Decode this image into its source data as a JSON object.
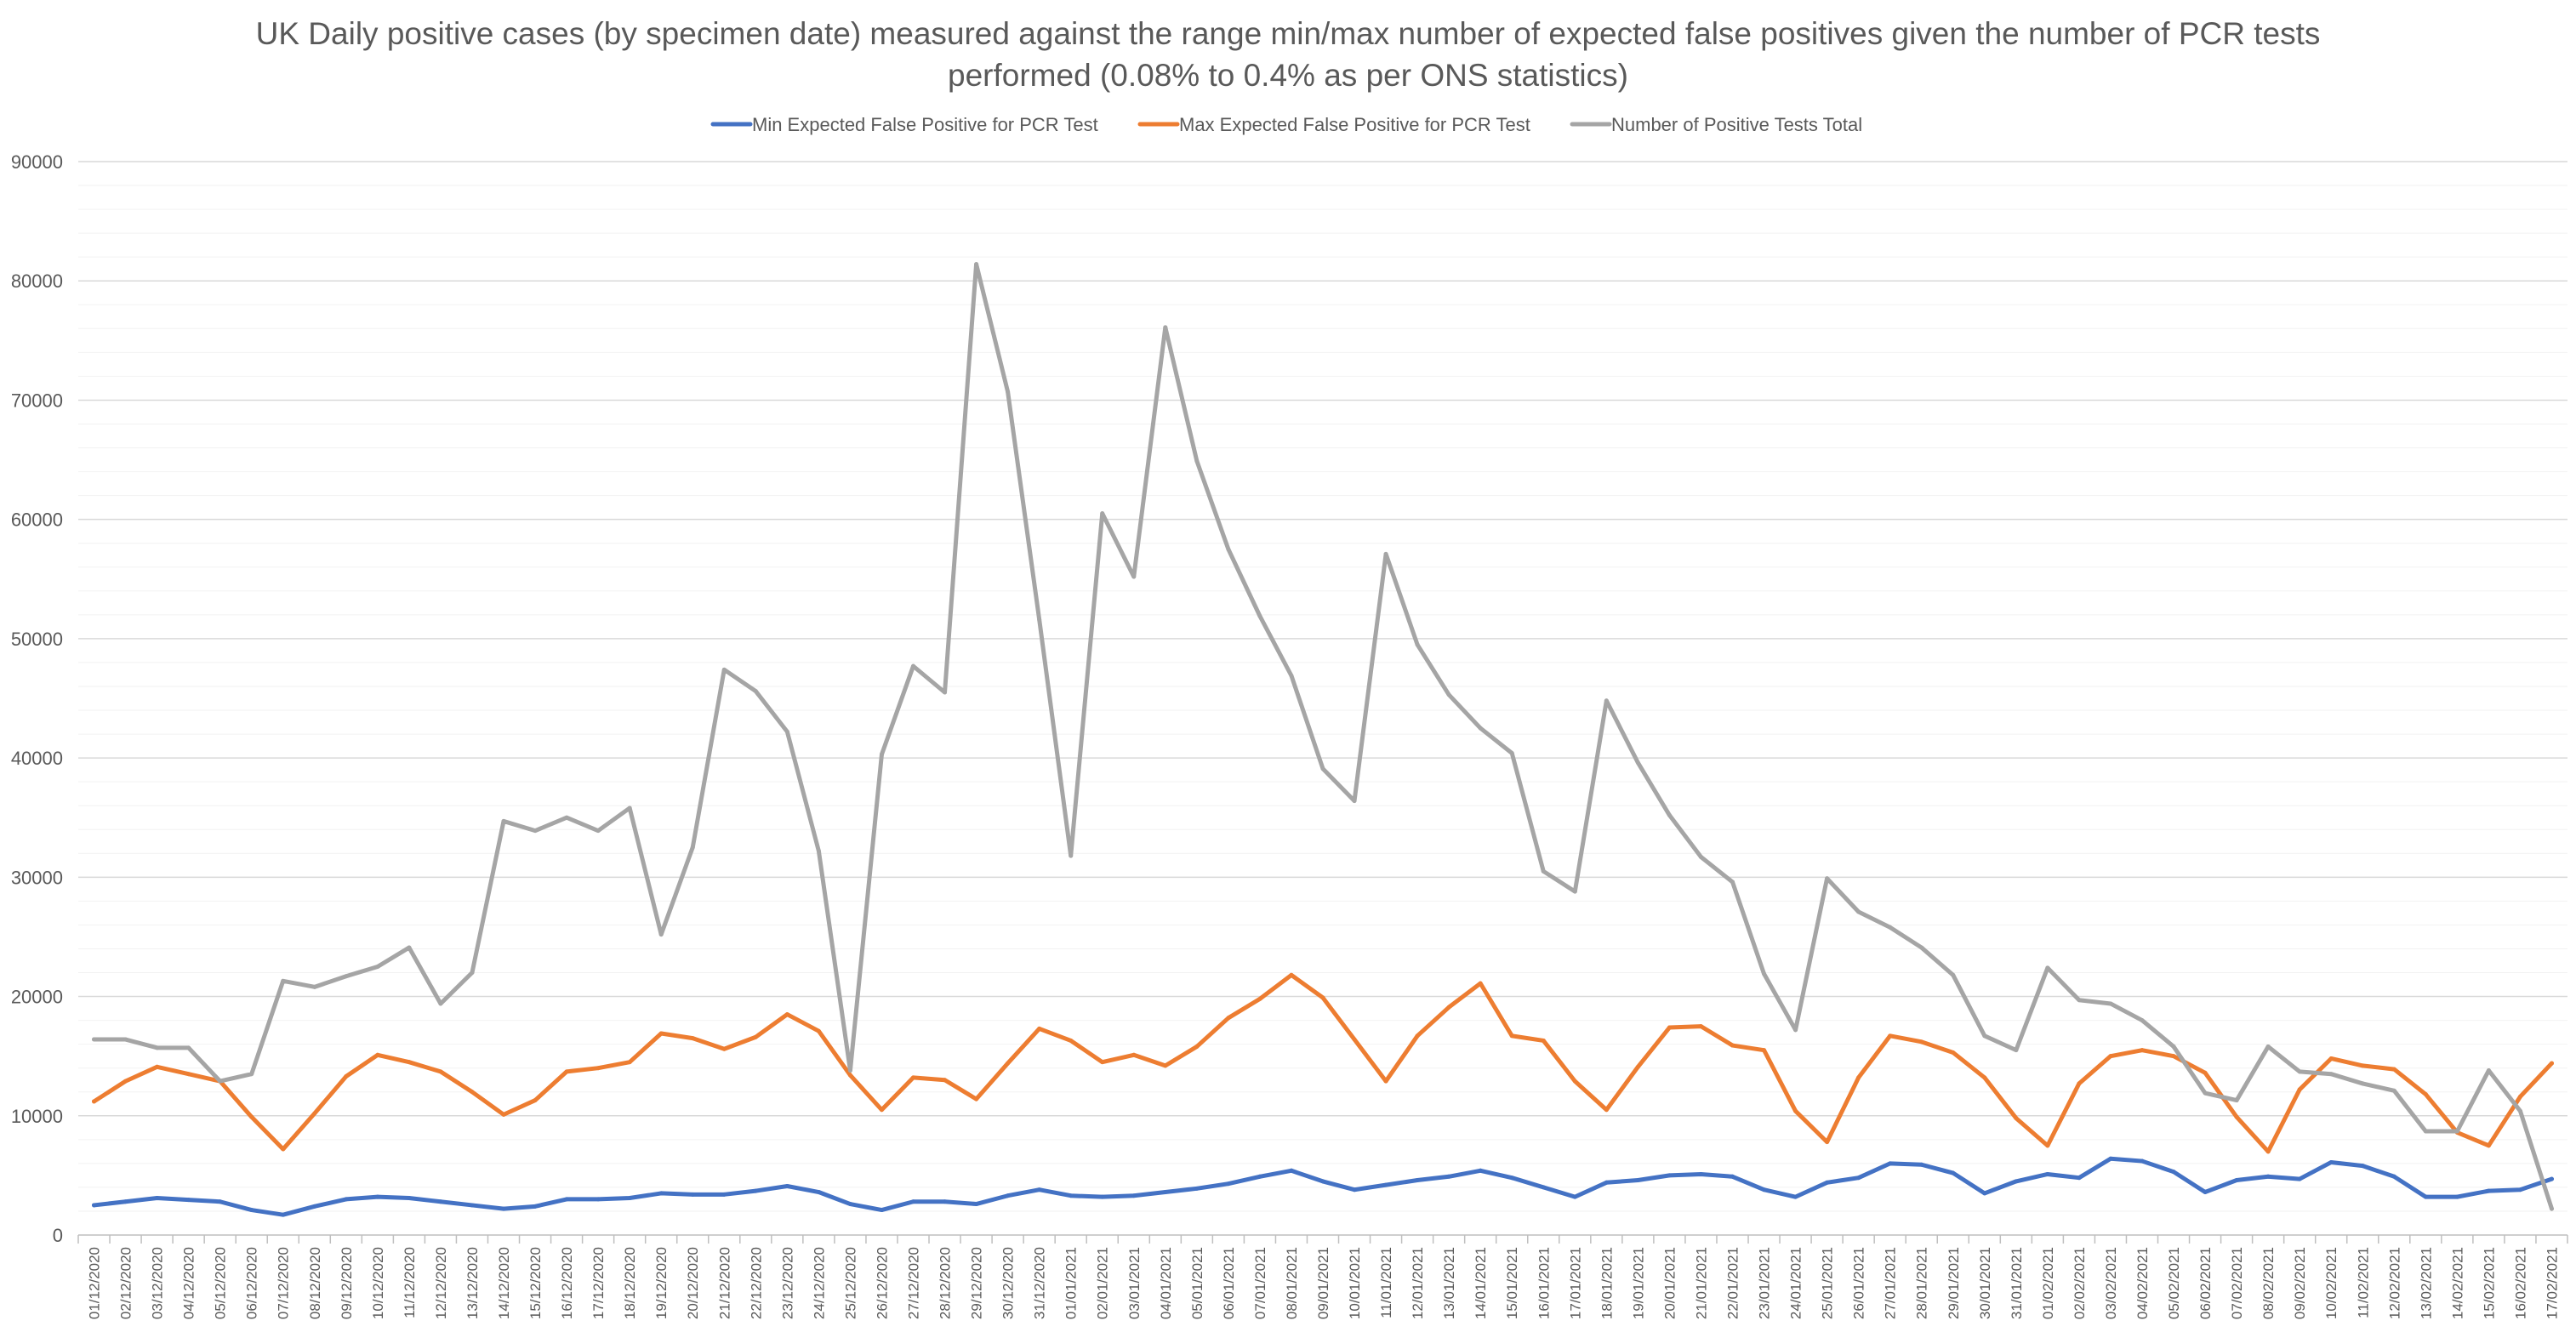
{
  "chart_data": {
    "type": "line",
    "title_lines": [
      "UK Daily positive cases (by specimen date) measured against the range min/max number of expected false positives given the number of PCR tests",
      "performed (0.08% to 0.4% as per ONS statistics)"
    ],
    "ylim": [
      0,
      90000
    ],
    "yticks": [
      "0",
      "10000",
      "20000",
      "30000",
      "40000",
      "50000",
      "60000",
      "70000",
      "80000",
      "90000"
    ],
    "grid": true,
    "legend_position": "top",
    "categories": [
      "01/12/2020",
      "02/12/2020",
      "03/12/2020",
      "04/12/2020",
      "05/12/2020",
      "06/12/2020",
      "07/12/2020",
      "08/12/2020",
      "09/12/2020",
      "10/12/2020",
      "11/12/2020",
      "12/12/2020",
      "13/12/2020",
      "14/12/2020",
      "15/12/2020",
      "16/12/2020",
      "17/12/2020",
      "18/12/2020",
      "19/12/2020",
      "20/12/2020",
      "21/12/2020",
      "22/12/2020",
      "23/12/2020",
      "24/12/2020",
      "25/12/2020",
      "26/12/2020",
      "27/12/2020",
      "28/12/2020",
      "29/12/2020",
      "30/12/2020",
      "31/12/2020",
      "01/01/2021",
      "02/01/2021",
      "03/01/2021",
      "04/01/2021",
      "05/01/2021",
      "06/01/2021",
      "07/01/2021",
      "08/01/2021",
      "09/01/2021",
      "10/01/2021",
      "11/01/2021",
      "12/01/2021",
      "13/01/2021",
      "14/01/2021",
      "15/01/2021",
      "16/01/2021",
      "17/01/2021",
      "18/01/2021",
      "19/01/2021",
      "20/01/2021",
      "21/01/2021",
      "22/01/2021",
      "23/01/2021",
      "24/01/2021",
      "25/01/2021",
      "26/01/2021",
      "27/01/2021",
      "28/01/2021",
      "29/01/2021",
      "30/01/2021",
      "31/01/2021",
      "01/02/2021",
      "02/02/2021",
      "03/02/2021",
      "04/02/2021",
      "05/02/2021",
      "06/02/2021",
      "07/02/2021",
      "08/02/2021",
      "09/02/2021",
      "10/02/2021",
      "11/02/2021",
      "12/02/2021",
      "13/02/2021",
      "14/02/2021",
      "15/02/2021",
      "16/02/2021",
      "17/02/2021"
    ],
    "series": [
      {
        "name": "Min Expected False Positive for PCR Test",
        "color": "#4472C4",
        "values": [
          2500,
          2800,
          3100,
          2950,
          2800,
          2100,
          1700,
          2400,
          3000,
          3200,
          3100,
          2800,
          2500,
          2200,
          2400,
          3000,
          3000,
          3100,
          3500,
          3400,
          3400,
          3700,
          4100,
          3600,
          2600,
          2100,
          2800,
          2800,
          2600,
          3300,
          3800,
          3300,
          3200,
          3300,
          3600,
          3900,
          4300,
          4900,
          5400,
          4500,
          3800,
          4200,
          4600,
          4900,
          5400,
          4800,
          4000,
          3200,
          4400,
          4600,
          5000,
          5100,
          4900,
          3800,
          3200,
          4400,
          4800,
          6000,
          5900,
          5200,
          3500,
          4500,
          5100,
          4800,
          6400,
          6200,
          5300,
          3600,
          4600,
          4900,
          4700,
          6100,
          5800,
          4900,
          3200,
          3200,
          3700,
          3800,
          4700
        ]
      },
      {
        "name": "Max Expected False Positive for PCR Test",
        "color": "#ED7D31",
        "values": [
          11200,
          12900,
          14100,
          13500,
          12900,
          9900,
          7200,
          10200,
          13300,
          15100,
          14500,
          13700,
          12000,
          10100,
          11300,
          13700,
          14000,
          14500,
          16900,
          16500,
          15600,
          16600,
          18500,
          17100,
          13400,
          10500,
          13200,
          13000,
          11400,
          14400,
          17300,
          16300,
          14500,
          15100,
          14200,
          15800,
          18200,
          19800,
          21800,
          19900,
          16400,
          12900,
          16700,
          19100,
          21100,
          16700,
          16300,
          12900,
          10500,
          14100,
          17400,
          17500,
          15900,
          15500,
          10400,
          7800,
          13200,
          16700,
          16200,
          15300,
          13200,
          9800,
          7500,
          12700,
          15000,
          15500,
          15000,
          13600,
          9900,
          7000,
          12200,
          14800,
          14200,
          13900,
          11800,
          8600,
          7500,
          11600,
          14400
        ]
      },
      {
        "name": "Number of Positive Tests Total",
        "color": "#A5A5A5",
        "values": [
          16400,
          16400,
          15700,
          15700,
          12900,
          13500,
          21300,
          20800,
          21700,
          22500,
          24100,
          19400,
          22000,
          34700,
          33900,
          35000,
          33900,
          35800,
          25200,
          32500,
          47400,
          45600,
          42200,
          32200,
          13800,
          40300,
          47700,
          45500,
          81400,
          70700,
          51600,
          31800,
          60500,
          55200,
          76100,
          64900,
          57500,
          51900,
          46900,
          39100,
          36400,
          57100,
          49500,
          45300,
          42500,
          40400,
          30500,
          28800,
          44800,
          39600,
          35200,
          31700,
          29600,
          21900,
          17200,
          29900,
          27100,
          25800,
          24100,
          21800,
          16700,
          15500,
          22400,
          19700,
          19400,
          18000,
          15800,
          11900,
          11300,
          15800,
          13700,
          13500,
          12700,
          12100,
          8700,
          8700,
          13800,
          10400,
          2200
        ]
      }
    ]
  }
}
